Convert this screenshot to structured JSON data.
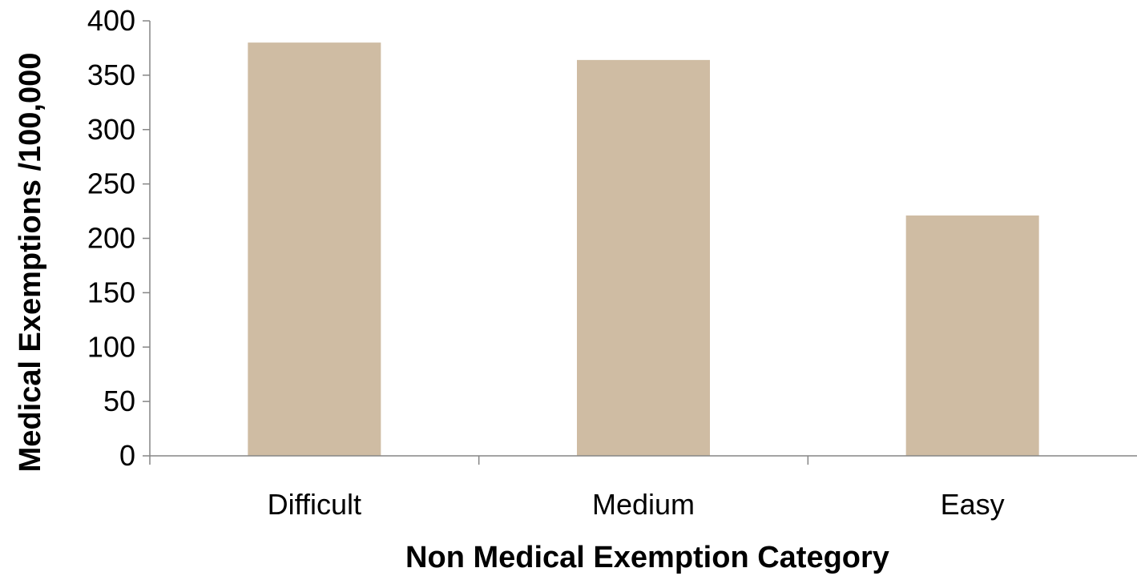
{
  "chart_data": {
    "type": "bar",
    "title": "",
    "categories": [
      "Difficult",
      "Medium",
      "Easy"
    ],
    "values": [
      380,
      364,
      221
    ],
    "xlabel": "Non Medical Exemption Category",
    "ylabel": "Medical Exemptions /100,000",
    "ylim": [
      0,
      400
    ],
    "yticks": [
      "0",
      "50",
      "100",
      "150",
      "200",
      "250",
      "300",
      "350",
      "400"
    ],
    "grid": false,
    "legend": "none",
    "bar_color": "#cfbca3",
    "axis_color": "#868686"
  }
}
